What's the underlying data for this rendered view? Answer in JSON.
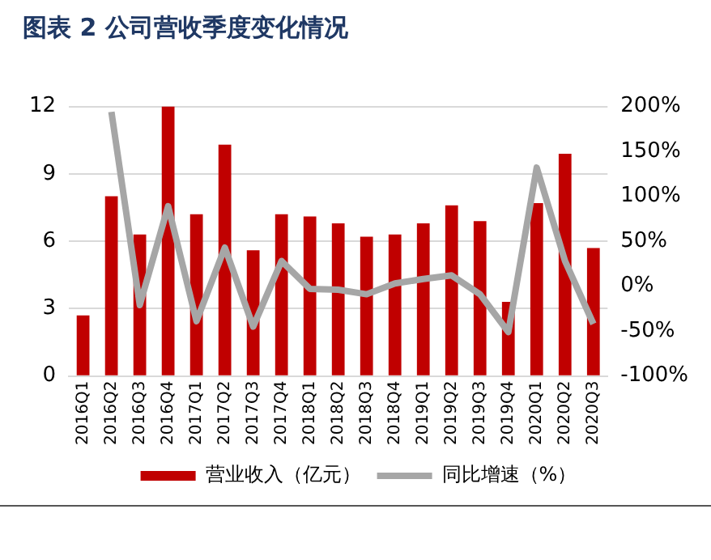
{
  "chart_data": {
    "type": "bar",
    "title": "图表 2 公司营收季度变化情况",
    "categories": [
      "2016Q1",
      "2016Q2",
      "2016Q3",
      "2016Q4",
      "2017Q1",
      "2017Q2",
      "2017Q3",
      "2017Q4",
      "2018Q1",
      "2018Q2",
      "2018Q3",
      "2018Q4",
      "2019Q1",
      "2019Q2",
      "2019Q3",
      "2019Q4",
      "2020Q1",
      "2020Q2",
      "2020Q3"
    ],
    "series": [
      {
        "name": "营业收入（亿元）",
        "color": "#c00000",
        "values": [
          2.7,
          8.0,
          6.3,
          12.0,
          7.2,
          10.3,
          5.6,
          7.2,
          7.1,
          6.8,
          6.2,
          6.3,
          6.8,
          7.6,
          6.9,
          3.3,
          7.7,
          9.9,
          5.7
        ]
      },
      {
        "name": "同比增速（%）",
        "type": "line",
        "axis": "y2",
        "color": "#a6a6a6",
        "values": [
          null,
          194,
          -21,
          89,
          -39,
          43,
          -45,
          28,
          -3,
          -4,
          -9,
          3,
          8,
          12,
          -9,
          -51,
          132,
          28,
          -42
        ]
      }
    ],
    "ylim": [
      0,
      12
    ],
    "yticks": [
      0,
      3,
      6,
      9,
      12
    ],
    "y2lim": [
      -100,
      200
    ],
    "y2ticks": [
      {
        "value": -100,
        "label": "-100%"
      },
      {
        "value": -50,
        "label": "-50%"
      },
      {
        "value": 0,
        "label": "0%"
      },
      {
        "value": 50,
        "label": "50%"
      },
      {
        "value": 100,
        "label": "100%"
      },
      {
        "value": 150,
        "label": "150%"
      },
      {
        "value": 200,
        "label": "200%"
      }
    ],
    "grid": "y",
    "legend": "bottom",
    "marker": "none",
    "line_style": "solid"
  }
}
